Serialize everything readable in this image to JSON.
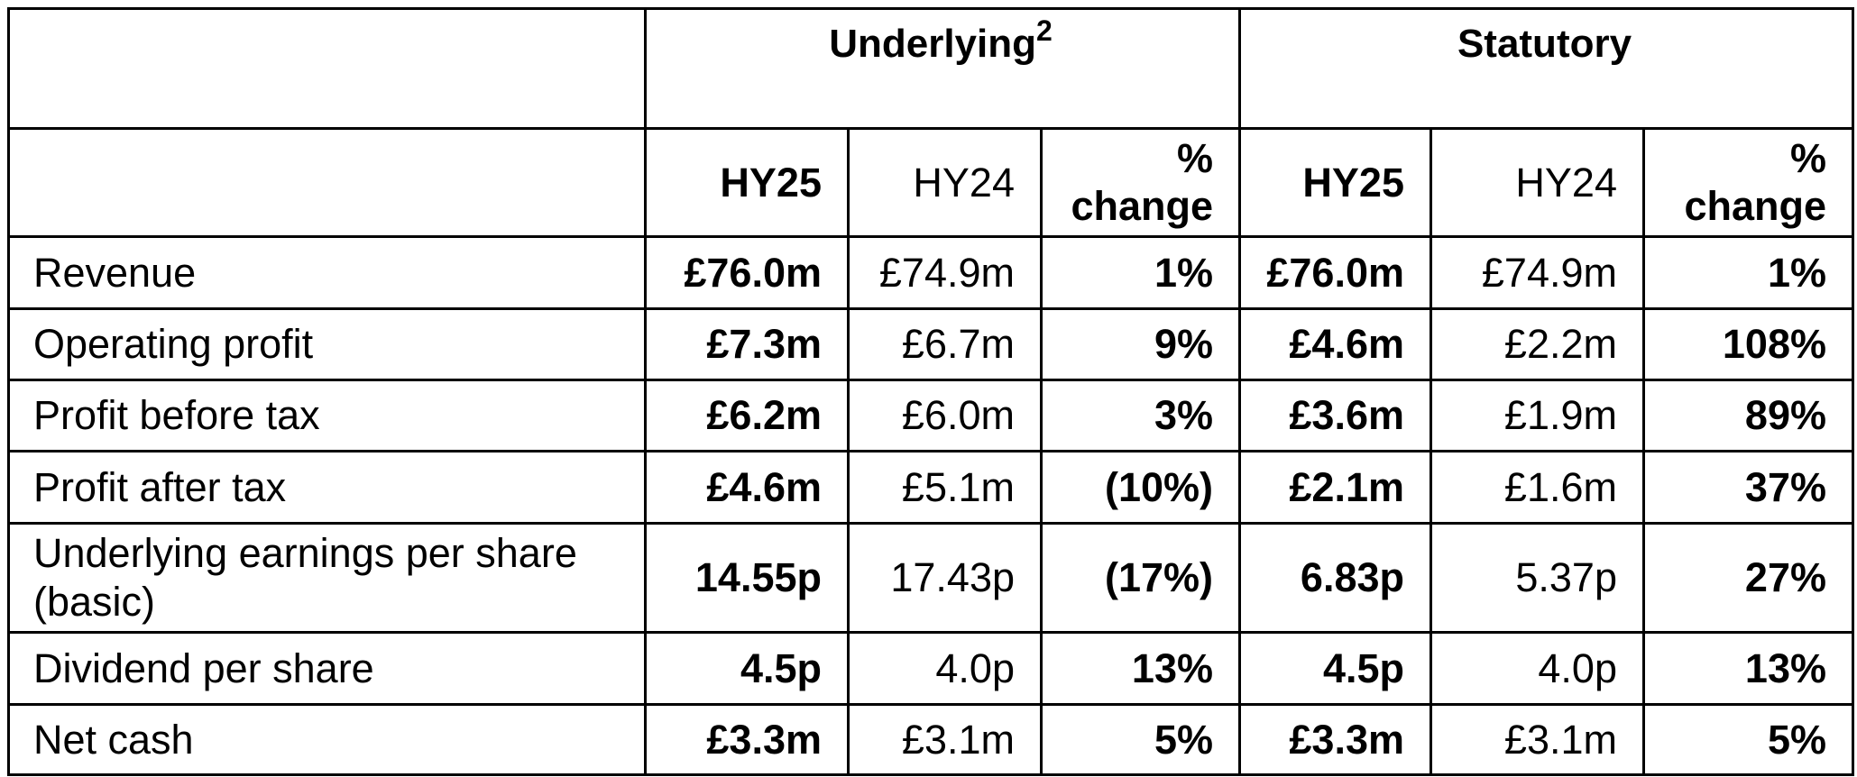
{
  "header": {
    "underlying_label": "Underlying",
    "underlying_sup": "2",
    "statutory_label": "Statutory",
    "col_hy25": "HY25",
    "col_hy24": "HY24",
    "col_pct_line1": "%",
    "col_pct_line2": "change"
  },
  "rows": [
    {
      "label": "Revenue",
      "u_hy25": "£76.0m",
      "u_hy24": "£74.9m",
      "u_pct": "1%",
      "s_hy25": "£76.0m",
      "s_hy24": "£74.9m",
      "s_pct": "1%"
    },
    {
      "label": "Operating profit",
      "u_hy25": "£7.3m",
      "u_hy24": "£6.7m",
      "u_pct": "9%",
      "s_hy25": "£4.6m",
      "s_hy24": "£2.2m",
      "s_pct": "108%"
    },
    {
      "label": "Profit before tax",
      "u_hy25": "£6.2m",
      "u_hy24": "£6.0m",
      "u_pct": "3%",
      "s_hy25": "£3.6m",
      "s_hy24": "£1.9m",
      "s_pct": "89%"
    },
    {
      "label": "Profit after tax",
      "u_hy25": "£4.6m",
      "u_hy24": "£5.1m",
      "u_pct": "(10%)",
      "s_hy25": "£2.1m",
      "s_hy24": "£1.6m",
      "s_pct": "37%"
    },
    {
      "label": "Underlying earnings per share (basic)",
      "u_hy25": "14.55p",
      "u_hy24": "17.43p",
      "u_pct": "(17%)",
      "s_hy25": "6.83p",
      "s_hy24": "5.37p",
      "s_pct": "27%"
    },
    {
      "label": "Dividend per share",
      "u_hy25": "4.5p",
      "u_hy24": "4.0p",
      "u_pct": "13%",
      "s_hy25": "4.5p",
      "s_hy24": "4.0p",
      "s_pct": "13%"
    },
    {
      "label": "Net cash",
      "u_hy25": "£3.3m",
      "u_hy24": "£3.1m",
      "u_pct": "5%",
      "s_hy25": "£3.3m",
      "s_hy24": "£3.1m",
      "s_pct": "5%"
    }
  ]
}
